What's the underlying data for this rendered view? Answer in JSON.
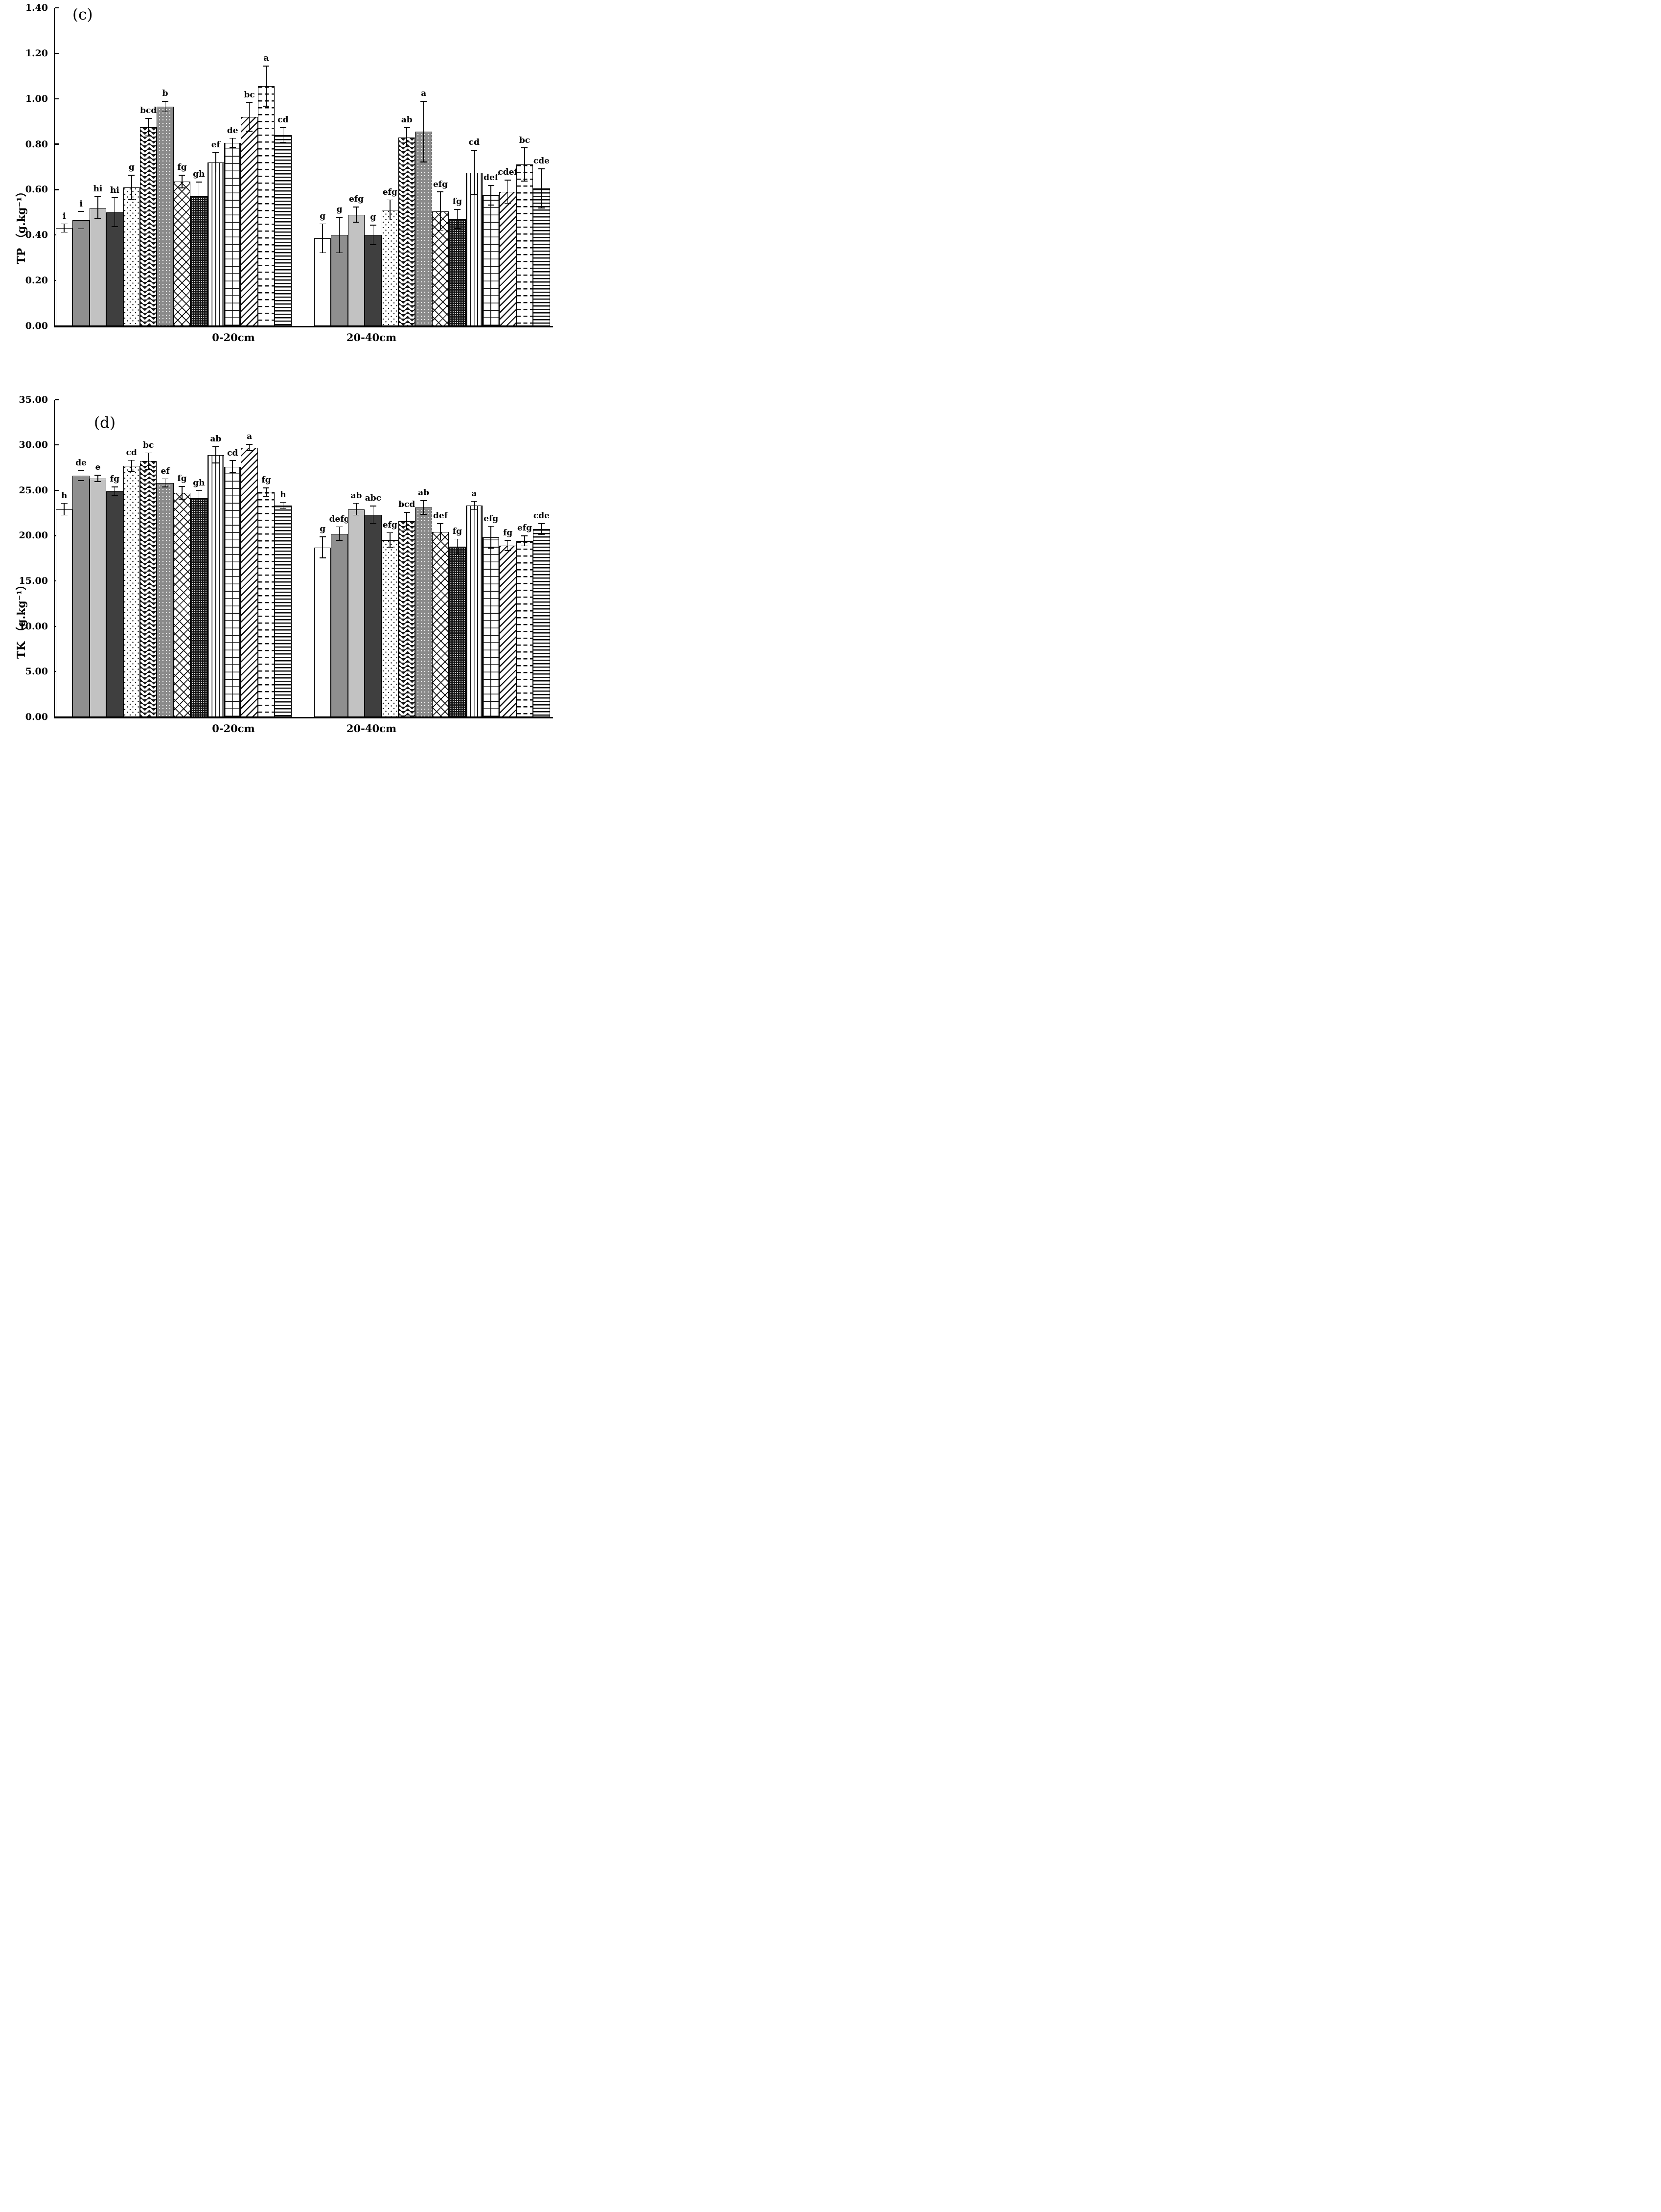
{
  "figure": {
    "description": "Two-panel grouped bar figure of soil nutrient content by depth",
    "colors": {
      "ink": "#000000",
      "bar_gray": "#8f8f8f",
      "bar_lightgray": "#c2c2c2",
      "bar_darkgray": "#3f3f3f",
      "background": "#ffffff"
    }
  },
  "chart_data": [
    {
      "type": "bar",
      "panel_label": "(c)",
      "ylabel": "TP （g.kg⁻¹）",
      "xlabel": "",
      "ylim": [
        0,
        1.4
      ],
      "ytick_step": 0.2,
      "ytick_labels": [
        "0.00",
        "0.20",
        "0.40",
        "0.60",
        "0.80",
        "1.00",
        "1.20",
        "1.40"
      ],
      "grid": "off",
      "legend": "none",
      "error_bars": true,
      "categories": [
        "0-20cm",
        "20-40cm"
      ],
      "series": [
        {
          "pattern": "solid-white",
          "values": [
            0.43,
            0.385
          ],
          "errors": [
            0.02,
            0.065
          ],
          "letters": [
            "i",
            "g"
          ]
        },
        {
          "pattern": "solid-gray",
          "values": [
            0.465,
            0.4
          ],
          "errors": [
            0.04,
            0.08
          ],
          "letters": [
            "i",
            "g"
          ]
        },
        {
          "pattern": "solid-lightgray",
          "values": [
            0.52,
            0.49
          ],
          "errors": [
            0.05,
            0.035
          ],
          "letters": [
            "hi",
            "efg"
          ]
        },
        {
          "pattern": "solid-darkgray",
          "values": [
            0.5,
            0.4
          ],
          "errors": [
            0.065,
            0.045
          ],
          "letters": [
            "hi",
            "g"
          ]
        },
        {
          "pattern": "dots-sparse",
          "values": [
            0.61,
            0.51
          ],
          "errors": [
            0.055,
            0.046
          ],
          "letters": [
            "g",
            "efg"
          ]
        },
        {
          "pattern": "zigzag-horizontal",
          "values": [
            0.875,
            0.83
          ],
          "errors": [
            0.04,
            0.045
          ],
          "letters": [
            "bcd",
            "ab"
          ]
        },
        {
          "pattern": "gray-white-dots",
          "values": [
            0.965,
            0.855
          ],
          "errors": [
            0.025,
            0.135
          ],
          "letters": [
            "b",
            "a"
          ]
        },
        {
          "pattern": "diagonal-bricks",
          "values": [
            0.635,
            0.505
          ],
          "errors": [
            0.03,
            0.086
          ],
          "letters": [
            "fg",
            "efg"
          ]
        },
        {
          "pattern": "black-white-dots",
          "values": [
            0.57,
            0.47
          ],
          "errors": [
            0.065,
            0.044
          ],
          "letters": [
            "gh",
            "fg"
          ]
        },
        {
          "pattern": "vertical-waves",
          "values": [
            0.72,
            0.675
          ],
          "errors": [
            0.045,
            0.1
          ],
          "letters": [
            "ef",
            "cd"
          ]
        },
        {
          "pattern": "grid",
          "values": [
            0.805,
            0.575
          ],
          "errors": [
            0.022,
            0.045
          ],
          "letters": [
            "de",
            "def"
          ]
        },
        {
          "pattern": "diagonal-stripes",
          "values": [
            0.92,
            0.59
          ],
          "errors": [
            0.065,
            0.053
          ],
          "letters": [
            "bc",
            "cdef"
          ]
        },
        {
          "pattern": "horizontal-dashes",
          "values": [
            1.055,
            0.71
          ],
          "errors": [
            0.09,
            0.075
          ],
          "letters": [
            "a",
            "bc"
          ]
        },
        {
          "pattern": "horizontal-stripes",
          "values": [
            0.84,
            0.605
          ],
          "errors": [
            0.035,
            0.088
          ],
          "letters": [
            "cd",
            "cde"
          ]
        }
      ]
    },
    {
      "type": "bar",
      "panel_label": "(d)",
      "ylabel": "TK （g.kg⁻¹）",
      "xlabel": "",
      "ylim": [
        0,
        35
      ],
      "ytick_step": 5,
      "ytick_labels": [
        "0.00",
        "5.00",
        "10.00",
        "15.00",
        "20.00",
        "25.00",
        "30.00",
        "35.00"
      ],
      "grid": "off",
      "legend": "none",
      "error_bars": true,
      "categories": [
        "0-20cm",
        "20-40cm"
      ],
      "series": [
        {
          "pattern": "solid-white",
          "values": [
            22.9,
            18.7
          ],
          "errors": [
            0.7,
            1.2
          ],
          "letters": [
            "h",
            "g"
          ]
        },
        {
          "pattern": "solid-gray",
          "values": [
            26.6,
            20.2
          ],
          "errors": [
            0.6,
            0.8
          ],
          "letters": [
            "de",
            "defg"
          ]
        },
        {
          "pattern": "solid-lightgray",
          "values": [
            26.3,
            22.9
          ],
          "errors": [
            0.4,
            0.7
          ],
          "letters": [
            "e",
            "ab"
          ]
        },
        {
          "pattern": "solid-darkgray",
          "values": [
            24.9,
            22.3
          ],
          "errors": [
            0.5,
            1.0
          ],
          "letters": [
            "fg",
            "abc"
          ]
        },
        {
          "pattern": "dots-sparse",
          "values": [
            27.7,
            19.5
          ],
          "errors": [
            0.65,
            0.85
          ],
          "letters": [
            "cd",
            "efg"
          ]
        },
        {
          "pattern": "zigzag-horizontal",
          "values": [
            28.2,
            21.6
          ],
          "errors": [
            0.95,
            1.0
          ],
          "letters": [
            "bc",
            "bcd"
          ]
        },
        {
          "pattern": "gray-white-dots",
          "values": [
            25.8,
            23.1
          ],
          "errors": [
            0.5,
            0.8
          ],
          "letters": [
            "ef",
            "ab"
          ]
        },
        {
          "pattern": "diagonal-bricks",
          "values": [
            24.7,
            20.4
          ],
          "errors": [
            0.75,
            0.95
          ],
          "letters": [
            "fg",
            "def"
          ]
        },
        {
          "pattern": "black-white-dots",
          "values": [
            24.1,
            18.8
          ],
          "errors": [
            0.9,
            0.85
          ],
          "letters": [
            "gh",
            "fg"
          ]
        },
        {
          "pattern": "vertical-waves",
          "values": [
            28.9,
            23.3
          ],
          "errors": [
            0.95,
            0.5
          ],
          "letters": [
            "ab",
            "a"
          ]
        },
        {
          "pattern": "grid",
          "values": [
            27.6,
            19.8
          ],
          "errors": [
            0.7,
            1.25
          ],
          "letters": [
            "cd",
            "efg"
          ]
        },
        {
          "pattern": "diagonal-stripes",
          "values": [
            29.7,
            18.9
          ],
          "errors": [
            0.4,
            0.6
          ],
          "letters": [
            "a",
            "fg"
          ]
        },
        {
          "pattern": "horizontal-dashes",
          "values": [
            24.8,
            19.4
          ],
          "errors": [
            0.5,
            0.6
          ],
          "letters": [
            "fg",
            "efg"
          ]
        },
        {
          "pattern": "horizontal-stripes",
          "values": [
            23.3,
            20.7
          ],
          "errors": [
            0.4,
            0.65
          ],
          "letters": [
            "h",
            "cde"
          ]
        }
      ]
    }
  ]
}
